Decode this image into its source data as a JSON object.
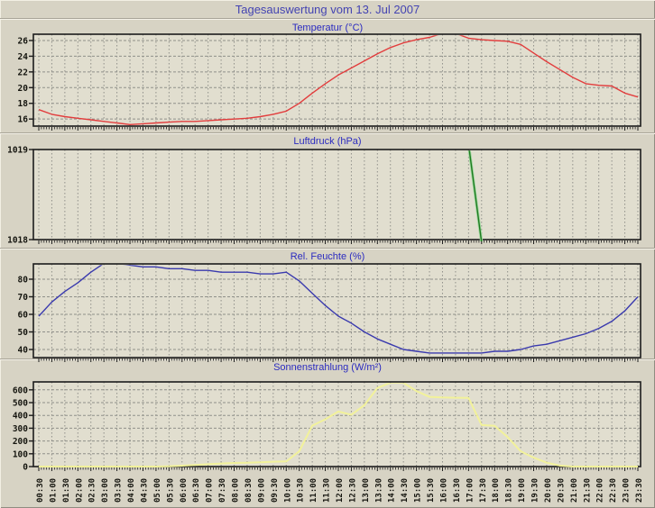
{
  "page": {
    "title": "Tagesauswertung vom 13. Jul 2007"
  },
  "colors": {
    "page_bg": "#d7d3c4",
    "plot_bg": "#e1decf",
    "grid": "#90908a",
    "frame": "#1c1c1c",
    "title_text": "#4444b2",
    "subtitle_text": "#2b2bc0",
    "temperature_line": "#e23d3d",
    "pressure_line": "#1f7a1f",
    "pressure_halo": "#9cd89c",
    "humidity_line": "#3a3aae",
    "radiation_line": "#f2f29a"
  },
  "categories": [
    "00:30",
    "01:00",
    "01:30",
    "02:00",
    "02:30",
    "03:00",
    "03:30",
    "04:00",
    "04:30",
    "05:00",
    "05:30",
    "06:00",
    "06:30",
    "07:00",
    "07:30",
    "08:00",
    "08:30",
    "09:00",
    "09:30",
    "10:00",
    "10:30",
    "11:00",
    "11:30",
    "12:00",
    "12:30",
    "13:00",
    "13:30",
    "14:00",
    "14:30",
    "15:00",
    "15:30",
    "16:00",
    "16:30",
    "17:00",
    "17:30",
    "18:00",
    "18:30",
    "19:00",
    "19:30",
    "20:00",
    "20:30",
    "21:00",
    "21:30",
    "22:00",
    "22:30",
    "23:00",
    "23:30"
  ],
  "chart_data": [
    {
      "type": "line",
      "title": "Temperatur (°C)",
      "color_key": "temperature_line",
      "ylim": [
        15.1,
        26.8
      ],
      "yticks": [
        16,
        18,
        20,
        22,
        24,
        26
      ],
      "values": [
        17.2,
        16.6,
        16.3,
        16.1,
        15.9,
        15.7,
        15.5,
        15.3,
        15.4,
        15.5,
        15.6,
        15.7,
        15.7,
        15.8,
        15.9,
        16.0,
        16.1,
        16.3,
        16.6,
        17.0,
        18.0,
        19.3,
        20.5,
        21.6,
        22.5,
        23.4,
        24.3,
        25.1,
        25.7,
        26.1,
        26.4,
        26.9,
        26.9,
        26.3,
        26.1,
        26.0,
        25.9,
        25.5,
        24.4,
        23.3,
        22.3,
        21.3,
        20.5,
        20.3,
        20.2,
        19.3,
        18.8
      ]
    },
    {
      "type": "line",
      "title": "Luftdruck (hPa)",
      "color_key": "pressure_line",
      "halo_key": "pressure_halo",
      "ylim": [
        1018,
        1019
      ],
      "yticks": [
        1018,
        1019
      ],
      "values": [
        null,
        null,
        null,
        null,
        null,
        null,
        null,
        null,
        null,
        null,
        null,
        null,
        null,
        null,
        null,
        null,
        null,
        null,
        null,
        null,
        null,
        null,
        null,
        null,
        null,
        null,
        null,
        null,
        null,
        null,
        null,
        null,
        null,
        1019.06,
        1017.97,
        null,
        null,
        null,
        null,
        null,
        null,
        null,
        null,
        null,
        null,
        null,
        null
      ]
    },
    {
      "type": "line",
      "title": "Rel. Feuchte (%)",
      "color_key": "humidity_line",
      "ylim": [
        35.4,
        88.7
      ],
      "yticks": [
        40,
        50,
        60,
        70,
        80
      ],
      "values": [
        59,
        67,
        73,
        78,
        84,
        89,
        89,
        88,
        87,
        87,
        86,
        86,
        85,
        85,
        84,
        84,
        84,
        83,
        83,
        84,
        79,
        72,
        65,
        59,
        55,
        50,
        46,
        43,
        40,
        39,
        38,
        38,
        38,
        38,
        38,
        39,
        39,
        40,
        42,
        43,
        45,
        47,
        49,
        52,
        56,
        62,
        70
      ]
    },
    {
      "type": "line",
      "title": "Sonnenstrahlung (W/m²)",
      "color_key": "radiation_line",
      "ylim": [
        0,
        662
      ],
      "yticks": [
        0,
        100,
        200,
        300,
        400,
        500,
        600
      ],
      "values": [
        0,
        0,
        0,
        0,
        0,
        0,
        0,
        0,
        0,
        0,
        3,
        7,
        12,
        18,
        24,
        28,
        30,
        34,
        38,
        40,
        120,
        320,
        370,
        430,
        405,
        480,
        615,
        655,
        655,
        590,
        545,
        540,
        538,
        537,
        325,
        318,
        230,
        120,
        70,
        30,
        8,
        0,
        0,
        0,
        0,
        0,
        0
      ]
    }
  ]
}
